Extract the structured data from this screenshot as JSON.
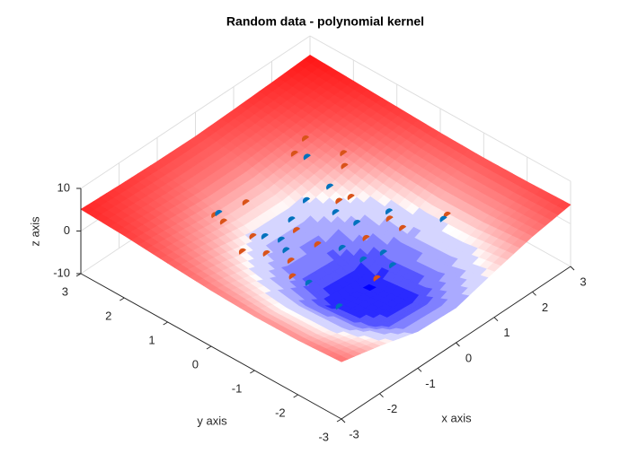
{
  "chart_data": {
    "type": "surface",
    "title": "Random data - polynomial kernel",
    "xlabel": "x axis",
    "ylabel": "y axis",
    "zlabel": "z axis",
    "xlim": [
      -3,
      3
    ],
    "ylim": [
      -3,
      3
    ],
    "zlim": [
      -10,
      10
    ],
    "xticks": [
      -3,
      -2,
      -1,
      0,
      1,
      2,
      3
    ],
    "yticks": [
      -3,
      -2,
      -1,
      0,
      1,
      2,
      3
    ],
    "zticks": [
      -10,
      0,
      10
    ],
    "grid": true,
    "surface": {
      "x": [
        -3,
        -2,
        -1,
        0,
        1,
        2,
        3
      ],
      "y": [
        -3,
        -2,
        -1,
        0,
        1,
        2,
        3
      ],
      "z": [
        [
          3.4,
          1.2,
          -1.4,
          -1.8,
          0.7,
          3.0,
          4.5
        ],
        [
          2.8,
          -0.5,
          -5.6,
          -6.4,
          -1.4,
          2.3,
          4.2
        ],
        [
          2.7,
          -0.9,
          -6.7,
          -7.7,
          -1.9,
          2.2,
          4.1
        ],
        [
          3.1,
          0.5,
          -3.1,
          -3.6,
          -0.2,
          2.7,
          4.3
        ],
        [
          3.8,
          2.3,
          0.7,
          0.5,
          2.0,
          3.6,
          4.7
        ],
        [
          4.6,
          3.7,
          3.0,
          3.0,
          3.6,
          4.4,
          5.1
        ],
        [
          5.1,
          4.7,
          4.4,
          4.3,
          4.6,
          5.0,
          5.5
        ]
      ]
    },
    "series": [
      {
        "color": "#d95319",
        "x": [
          1.3,
          0.9,
          1.5,
          1.3,
          0.9,
          -0.6,
          -1.3,
          -1.3,
          -1.1,
          -1.2,
          -1.6,
          -0.3,
          -0.2,
          1.6,
          1.0,
          -0.9,
          -1.2,
          0.5,
          0.1,
          1.0,
          0.7
        ],
        "y": [
          1.6,
          1.5,
          0.9,
          0.7,
          0.2,
          1.3,
          1.4,
          1.2,
          0.7,
          0.3,
          0.5,
          0.4,
          0.0,
          -1.4,
          -0.9,
          0.0,
          -0.3,
          -0.5,
          -1.1,
          -0.6,
          0.3
        ]
      },
      {
        "color": "#0072bd",
        "x": [
          1.0,
          0.8,
          0.3,
          1.1,
          1.5,
          -1.2,
          -0.9,
          -0.2,
          -0.7,
          -0.8,
          0.5,
          0.6,
          0.1,
          0.2,
          0.5,
          0.4,
          -1.0,
          -1.0
        ],
        "y": [
          1.3,
          0.6,
          0.7,
          -0.5,
          -1.4,
          1.4,
          0.6,
          0.6,
          0.4,
          0.2,
          0.2,
          -0.2,
          -0.3,
          -0.7,
          -0.9,
          -1.2,
          -1.2,
          -0.5
        ]
      }
    ]
  }
}
